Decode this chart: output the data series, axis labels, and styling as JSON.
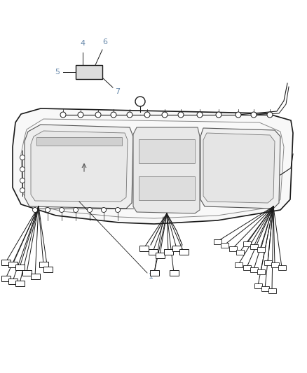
{
  "background_color": "#ffffff",
  "line_color": "#1a1a1a",
  "label_color": "#6688aa",
  "figsize": [
    4.38,
    5.33
  ],
  "dpi": 100,
  "lw_main": 1.0,
  "lw_thin": 0.6,
  "lw_wire": 0.7
}
